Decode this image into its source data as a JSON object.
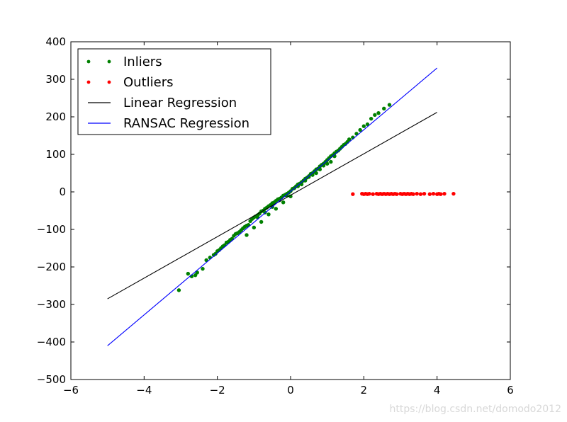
{
  "chart_data": {
    "type": "scatter",
    "title": "",
    "xlabel": "",
    "ylabel": "",
    "xlim": [
      -6,
      6
    ],
    "ylim": [
      -500,
      400
    ],
    "xticks": [
      -6,
      -4,
      -2,
      0,
      2,
      4,
      6
    ],
    "yticks": [
      -500,
      -400,
      -300,
      -200,
      -100,
      0,
      100,
      200,
      300,
      400
    ],
    "xtick_labels": [
      "−6",
      "−4",
      "−2",
      "0",
      "2",
      "4",
      "6"
    ],
    "ytick_labels": [
      "−500",
      "−400",
      "−300",
      "−200",
      "−100",
      "0",
      "100",
      "200",
      "300",
      "400"
    ],
    "grid": false,
    "legend": {
      "position": "top-left"
    },
    "series": [
      {
        "name": "Inliers",
        "kind": "scatter",
        "color": "#008000",
        "x": [
          -3.05,
          -2.8,
          -2.7,
          -2.6,
          -2.55,
          -2.4,
          -2.3,
          -2.2,
          -2.1,
          -2.05,
          -2.0,
          -1.95,
          -1.9,
          -1.85,
          -1.8,
          -1.75,
          -1.7,
          -1.65,
          -1.6,
          -1.55,
          -1.5,
          -1.45,
          -1.4,
          -1.35,
          -1.3,
          -1.25,
          -1.2,
          -1.15,
          -1.1,
          -1.05,
          -1.0,
          -0.95,
          -0.9,
          -0.85,
          -0.8,
          -0.75,
          -0.7,
          -0.65,
          -0.6,
          -0.55,
          -0.5,
          -0.45,
          -0.4,
          -0.35,
          -0.3,
          -0.25,
          -0.2,
          -0.15,
          -0.1,
          -0.05,
          0.0,
          0.05,
          0.1,
          0.15,
          0.2,
          0.25,
          0.3,
          0.35,
          0.4,
          0.45,
          0.5,
          0.55,
          0.6,
          0.65,
          0.7,
          0.75,
          0.8,
          0.85,
          0.9,
          0.95,
          1.0,
          1.05,
          1.1,
          1.15,
          1.2,
          1.25,
          1.3,
          1.35,
          1.4,
          1.45,
          1.5,
          1.55,
          1.6,
          1.7,
          1.8,
          1.9,
          2.0,
          2.1,
          2.2,
          2.3,
          2.4,
          2.55,
          2.7,
          -1.2,
          -1.0,
          -0.8,
          -0.6,
          -0.4,
          -0.2,
          0.0,
          0.2,
          0.4,
          0.6,
          0.8,
          1.0,
          1.2,
          -0.9,
          -0.5,
          -0.1,
          0.3,
          0.7,
          1.1,
          -0.7,
          -0.3,
          0.1,
          0.5,
          0.9
        ],
        "y": [
          -262,
          -218,
          -225,
          -222,
          -215,
          -205,
          -182,
          -175,
          -168,
          -165,
          -158,
          -155,
          -150,
          -145,
          -142,
          -135,
          -133,
          -128,
          -125,
          -117,
          -112,
          -110,
          -107,
          -102,
          -97,
          -93,
          -90,
          -88,
          -78,
          -72,
          -68,
          -65,
          -62,
          -58,
          -52,
          -50,
          -45,
          -42,
          -38,
          -35,
          -30,
          -28,
          -24,
          -20,
          -18,
          -15,
          -10,
          -8,
          -5,
          -2,
          2,
          8,
          10,
          15,
          20,
          22,
          26,
          30,
          35,
          38,
          42,
          48,
          50,
          55,
          60,
          62,
          68,
          72,
          75,
          80,
          85,
          90,
          95,
          98,
          103,
          107,
          110,
          115,
          120,
          125,
          128,
          133,
          140,
          145,
          155,
          165,
          175,
          180,
          195,
          205,
          210,
          222,
          232,
          -115,
          -95,
          -80,
          -60,
          -45,
          -28,
          -12,
          15,
          30,
          45,
          60,
          75,
          95,
          -68,
          -40,
          -10,
          20,
          50,
          80,
          -55,
          -22,
          10,
          40,
          70
        ]
      },
      {
        "name": "Outliers",
        "kind": "scatter",
        "color": "#ff0000",
        "x": [
          1.7,
          1.95,
          2.0,
          2.05,
          2.1,
          2.15,
          2.25,
          2.35,
          2.4,
          2.45,
          2.5,
          2.55,
          2.6,
          2.65,
          2.7,
          2.75,
          2.8,
          2.85,
          2.9,
          3.0,
          3.05,
          3.1,
          3.15,
          3.2,
          3.25,
          3.3,
          3.35,
          3.45,
          3.55,
          3.65,
          3.8,
          3.9,
          4.0,
          4.05,
          4.1,
          4.2,
          4.45
        ],
        "y": [
          -6,
          -5,
          -6,
          -5,
          -6,
          -5,
          -6,
          -5,
          -6,
          -5,
          -6,
          -5,
          -6,
          -5,
          -6,
          -5,
          -6,
          -5,
          -6,
          -5,
          -6,
          -5,
          -6,
          -5,
          -6,
          -5,
          -6,
          -5,
          -6,
          -5,
          -6,
          -5,
          -6,
          -5,
          -6,
          -5,
          -5
        ]
      },
      {
        "name": "Linear Regression",
        "kind": "line",
        "color": "#000000",
        "x": [
          -5,
          4
        ],
        "y": [
          -285,
          212
        ]
      },
      {
        "name": "RANSAC Regression",
        "kind": "line",
        "color": "#0000ff",
        "x": [
          -5,
          4
        ],
        "y": [
          -410,
          330
        ]
      }
    ]
  },
  "watermark": "https://blog.csdn.net/domodo2012"
}
